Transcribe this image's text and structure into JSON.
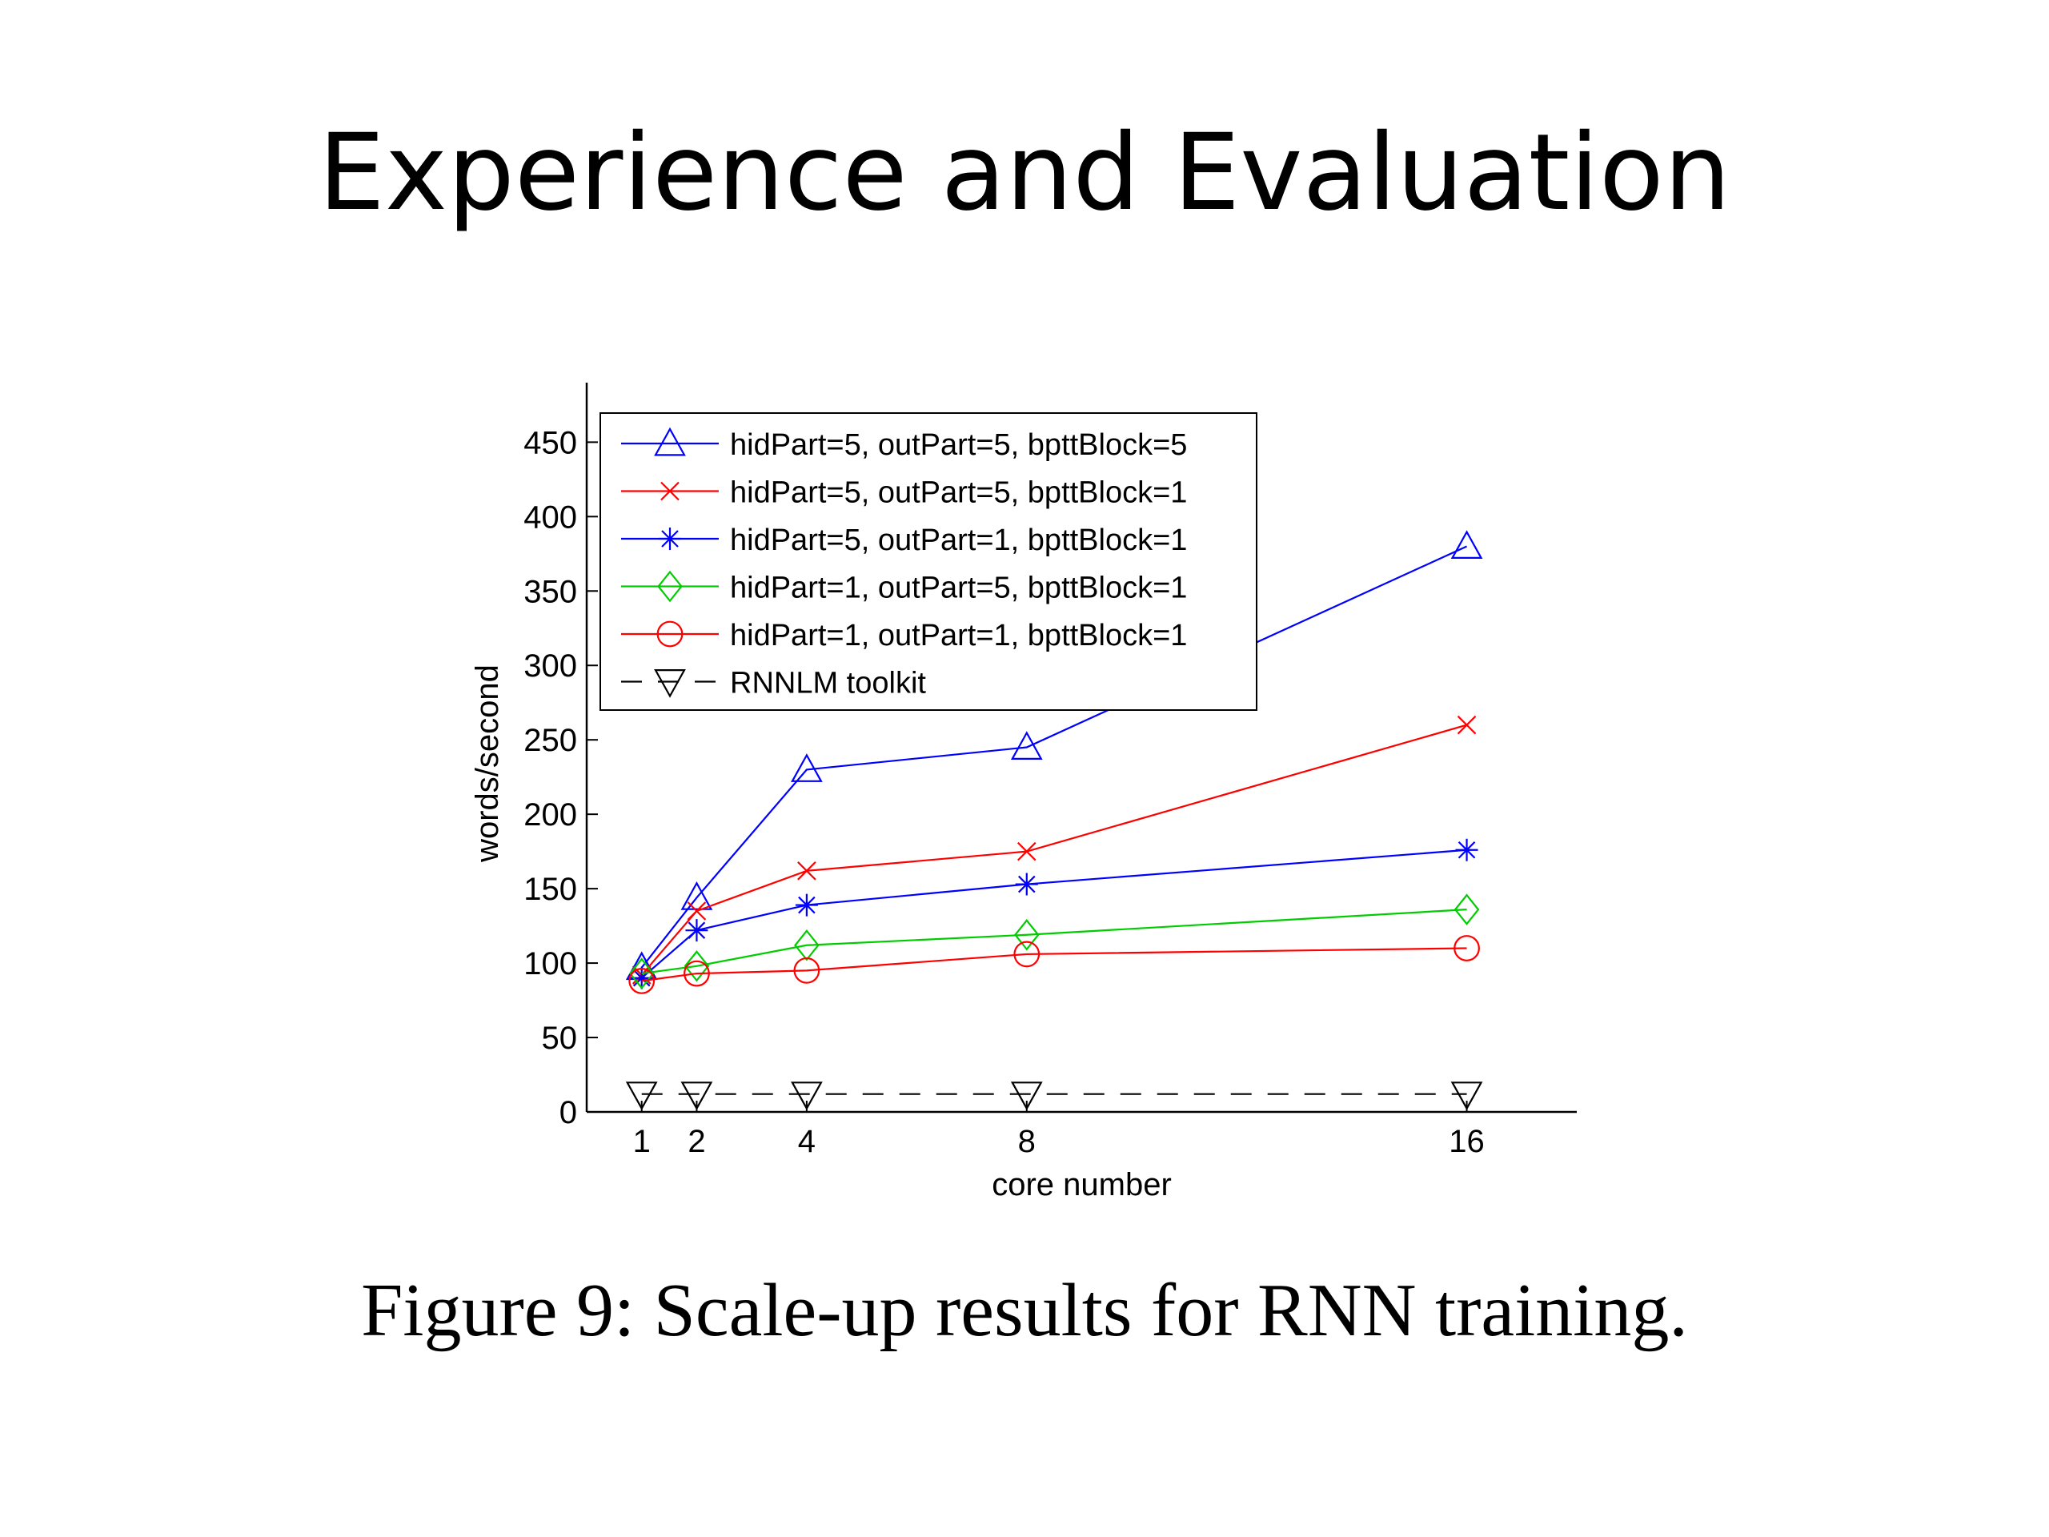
{
  "slide": {
    "title": "Experience and Evaluation",
    "caption": "Figure 9: Scale-up results for RNN training."
  },
  "chart_data": {
    "type": "line",
    "xlabel": "core number",
    "ylabel": "words/second",
    "x": [
      1,
      2,
      4,
      8,
      16
    ],
    "xticks": [
      "1",
      "2",
      "4",
      "8",
      "16"
    ],
    "yticks": [
      "0",
      "50",
      "100",
      "150",
      "200",
      "250",
      "300",
      "350",
      "400",
      "450"
    ],
    "xlim": [
      0,
      18
    ],
    "ylim": [
      0,
      490
    ],
    "grid": false,
    "legend_position": "top-left",
    "series": [
      {
        "name": "hidPart=5, outPart=5, bpttBlock=5",
        "values": [
          97,
          144,
          230,
          245,
          380
        ],
        "color": "#0000ff",
        "marker": "triangle-up",
        "dash": "solid"
      },
      {
        "name": "hidPart=5, outPart=5, bpttBlock=1",
        "values": [
          92,
          135,
          162,
          175,
          260
        ],
        "color": "#ff0000",
        "marker": "x",
        "dash": "solid"
      },
      {
        "name": "hidPart=5, outPart=1, bpttBlock=1",
        "values": [
          90,
          122,
          139,
          153,
          176
        ],
        "color": "#0000ff",
        "marker": "star",
        "dash": "solid"
      },
      {
        "name": "hidPart=1, outPart=5, bpttBlock=1",
        "values": [
          93,
          98,
          112,
          119,
          136
        ],
        "color": "#00cc00",
        "marker": "diamond",
        "dash": "solid"
      },
      {
        "name": "hidPart=1, outPart=1, bpttBlock=1",
        "values": [
          88,
          93,
          95,
          106,
          110
        ],
        "color": "#ff0000",
        "marker": "circle",
        "dash": "solid"
      },
      {
        "name": "RNNLM toolkit",
        "values": [
          12,
          12,
          12,
          12,
          12
        ],
        "color": "#000000",
        "marker": "triangle-down",
        "dash": "dashed"
      }
    ]
  }
}
